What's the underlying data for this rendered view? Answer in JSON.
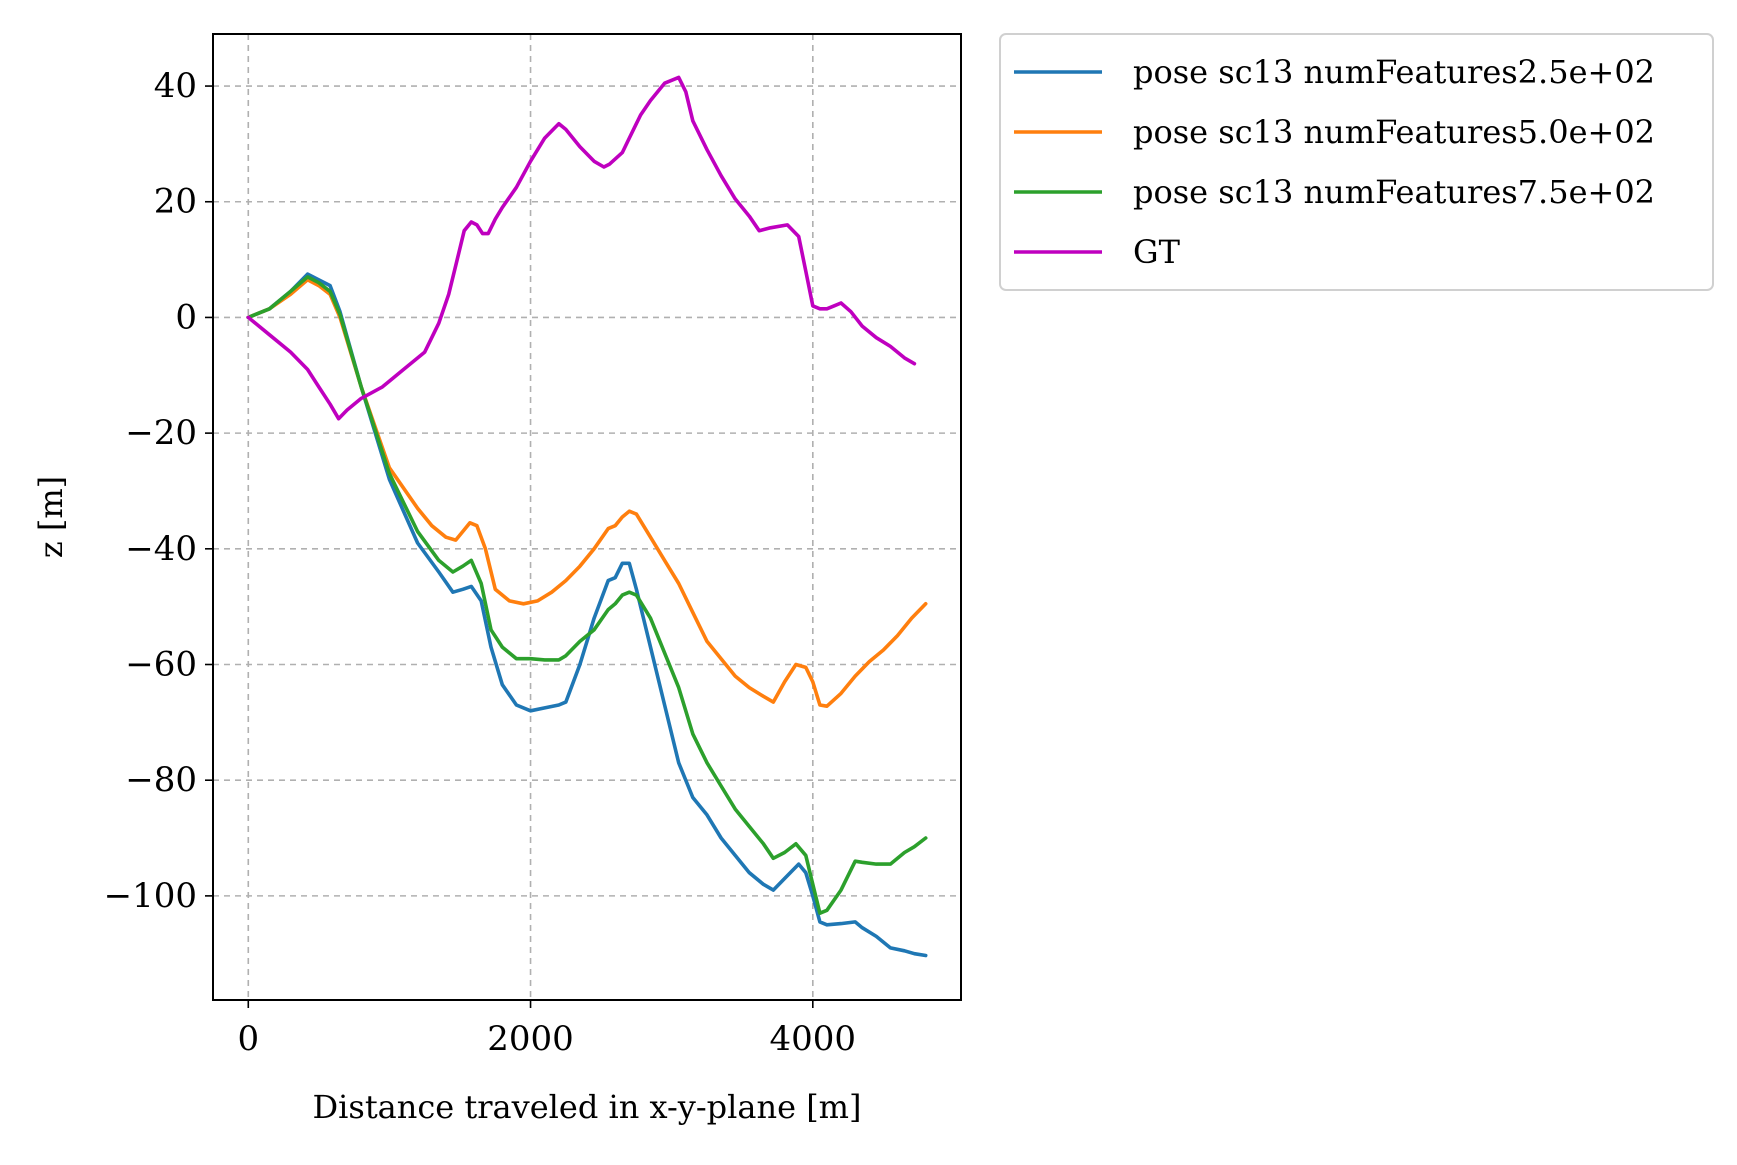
{
  "chart_data": {
    "type": "line",
    "xlabel": "Distance traveled in x-y-plane [m]",
    "ylabel": "z [m]",
    "xlim": [
      -250,
      5050
    ],
    "ylim": [
      -118,
      49
    ],
    "xticks": [
      0,
      2000,
      4000
    ],
    "yticks": [
      40,
      20,
      0,
      -20,
      -40,
      -60,
      -80,
      -100
    ],
    "xtick_labels": [
      "0",
      "2000",
      "4000"
    ],
    "ytick_labels": [
      "40",
      "20",
      "0",
      "−20",
      "−40",
      "−60",
      "−80",
      "−100"
    ],
    "grid": true,
    "legend_placement": "outside-upper-right",
    "series": [
      {
        "name": "pose sc13 numFeatures2.5e+02",
        "color": "#1f77b4",
        "x": [
          0,
          150,
          300,
          420,
          500,
          580,
          650,
          800,
          1000,
          1200,
          1350,
          1450,
          1520,
          1580,
          1650,
          1720,
          1800,
          1900,
          2000,
          2100,
          2200,
          2250,
          2350,
          2450,
          2550,
          2600,
          2650,
          2700,
          2750,
          2850,
          2950,
          3050,
          3150,
          3250,
          3350,
          3450,
          3550,
          3650,
          3720,
          3800,
          3900,
          3950,
          4000,
          4050,
          4100,
          4200,
          4300,
          4350,
          4450,
          4550,
          4650,
          4720,
          4800
        ],
        "values": [
          0,
          1.5,
          4.5,
          7.5,
          6.5,
          5.5,
          1,
          -12,
          -28,
          -39,
          -44,
          -47.5,
          -47,
          -46.5,
          -49,
          -57,
          -63.5,
          -67,
          -68,
          -67.5,
          -67,
          -66.5,
          -60,
          -52,
          -45.5,
          -45,
          -42.5,
          -42.5,
          -47,
          -57,
          -67,
          -77,
          -83,
          -86,
          -90,
          -93,
          -96,
          -98,
          -99,
          -97,
          -94.5,
          -96,
          -100,
          -104.5,
          -105,
          -104.8,
          -104.5,
          -105.5,
          -107,
          -109,
          -109.5,
          -110,
          -110.3
        ]
      },
      {
        "name": "pose sc13 numFeatures5.0e+02",
        "color": "#ff7f0e",
        "x": [
          0,
          150,
          300,
          420,
          500,
          580,
          650,
          800,
          1000,
          1200,
          1300,
          1400,
          1470,
          1520,
          1570,
          1620,
          1680,
          1750,
          1850,
          1950,
          2050,
          2150,
          2250,
          2350,
          2450,
          2550,
          2600,
          2650,
          2700,
          2750,
          2850,
          2950,
          3050,
          3150,
          3250,
          3350,
          3450,
          3550,
          3650,
          3720,
          3800,
          3880,
          3950,
          4000,
          4050,
          4100,
          4200,
          4300,
          4400,
          4500,
          4600,
          4700,
          4800
        ],
        "values": [
          0,
          1.5,
          4,
          6.5,
          5.5,
          4,
          0,
          -12,
          -26,
          -33,
          -36,
          -38,
          -38.5,
          -37,
          -35.5,
          -36,
          -40,
          -47,
          -49,
          -49.5,
          -49,
          -47.5,
          -45.5,
          -43,
          -40,
          -36.5,
          -36,
          -34.5,
          -33.5,
          -34,
          -38,
          -42,
          -46,
          -51,
          -56,
          -59,
          -62,
          -64,
          -65.5,
          -66.5,
          -63,
          -60,
          -60.5,
          -63,
          -67,
          -67.2,
          -65,
          -62,
          -59.5,
          -57.5,
          -55,
          -52,
          -49.5
        ]
      },
      {
        "name": "pose sc13 numFeatures7.5e+02",
        "color": "#2ca02c",
        "x": [
          0,
          150,
          300,
          420,
          500,
          580,
          650,
          800,
          1000,
          1200,
          1350,
          1450,
          1520,
          1580,
          1650,
          1720,
          1800,
          1900,
          2000,
          2100,
          2200,
          2250,
          2350,
          2450,
          2550,
          2600,
          2650,
          2700,
          2750,
          2850,
          2950,
          3050,
          3150,
          3250,
          3350,
          3450,
          3550,
          3650,
          3720,
          3800,
          3880,
          3950,
          4000,
          4050,
          4100,
          4200,
          4300,
          4350,
          4450,
          4550,
          4650,
          4720,
          4800
        ],
        "values": [
          0,
          1.5,
          4.5,
          7,
          6,
          4.5,
          0.5,
          -12,
          -27,
          -37,
          -42,
          -44,
          -43,
          -42,
          -46,
          -54,
          -57,
          -59,
          -59,
          -59.2,
          -59.2,
          -58.5,
          -56,
          -54,
          -50.5,
          -49.5,
          -48,
          -47.5,
          -48,
          -52,
          -58,
          -64,
          -72,
          -77,
          -81,
          -85,
          -88,
          -91,
          -93.5,
          -92.5,
          -91,
          -93,
          -98,
          -103,
          -102.5,
          -99,
          -94,
          -94.2,
          -94.5,
          -94.5,
          -92.5,
          -91.5,
          -90
        ]
      },
      {
        "name": "GT",
        "color": "#bf00bf",
        "x": [
          0,
          150,
          300,
          420,
          500,
          580,
          640,
          700,
          800,
          950,
          1100,
          1250,
          1350,
          1420,
          1480,
          1530,
          1580,
          1620,
          1660,
          1700,
          1750,
          1800,
          1900,
          2000,
          2100,
          2200,
          2250,
          2350,
          2450,
          2520,
          2560,
          2650,
          2700,
          2780,
          2850,
          2950,
          3050,
          3100,
          3150,
          3250,
          3350,
          3450,
          3550,
          3620,
          3700,
          3820,
          3900,
          3950,
          4000,
          4050,
          4100,
          4150,
          4200,
          4270,
          4350,
          4450,
          4550,
          4650,
          4720
        ],
        "values": [
          0,
          -3,
          -6,
          -9,
          -12,
          -15,
          -17.5,
          -16,
          -14,
          -12,
          -9,
          -6,
          -1,
          4,
          10,
          15,
          16.5,
          16,
          14.5,
          14.5,
          17,
          19,
          22.5,
          27,
          31,
          33.5,
          32.5,
          29.5,
          27,
          26,
          26.5,
          28.5,
          31,
          35,
          37.5,
          40.5,
          41.5,
          39,
          34,
          29,
          24.5,
          20.5,
          17.5,
          15,
          15.5,
          16,
          14,
          8,
          2,
          1.5,
          1.5,
          2,
          2.5,
          1,
          -1.5,
          -3.5,
          -5,
          -7,
          -8
        ]
      }
    ]
  }
}
